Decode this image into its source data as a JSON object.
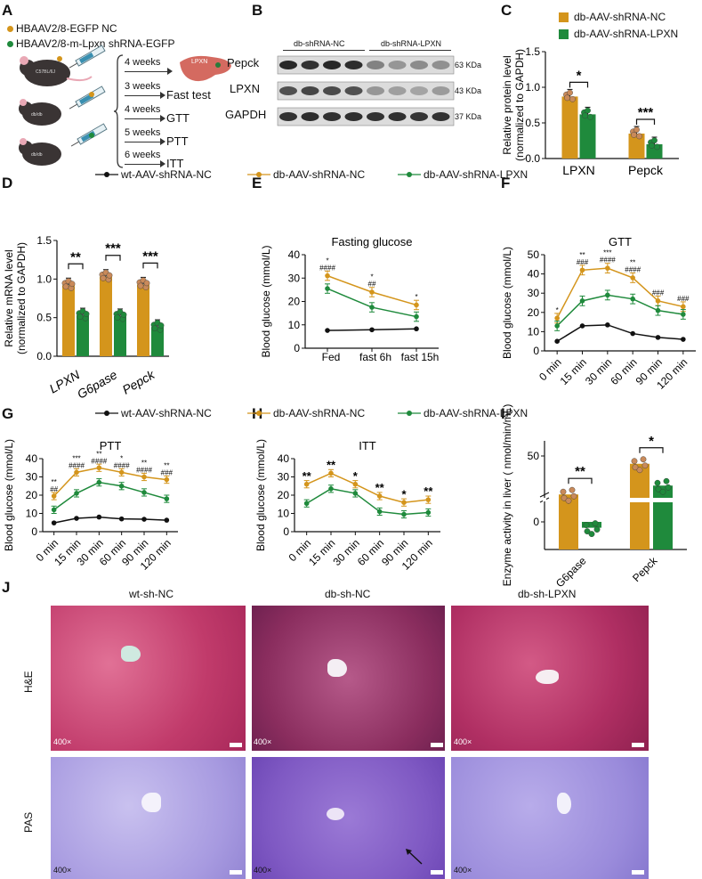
{
  "colors": {
    "nc": "#d4951c",
    "lpxn": "#1f8a3c",
    "wt": "#111111",
    "he": "#c9417d",
    "pas": "#8d7ad0"
  },
  "panel_labels": [
    "A",
    "B",
    "C",
    "D",
    "E",
    "F",
    "G",
    "H",
    "I",
    "J"
  ],
  "panelA": {
    "legend": [
      "HBAAV2/8-EGFP NC",
      "HBAAV2/8-m-Lpxn shRNA-EGFP"
    ],
    "schedule": [
      "4 weeks",
      "3 weeks",
      "4 weeks",
      "5 weeks",
      "6 weeks"
    ],
    "tests": [
      "Fast test",
      "GTT",
      "PTT",
      "ITT"
    ],
    "mouse_labels": [
      "C57BL/6J",
      "db/db",
      "db/db"
    ],
    "liver_label": "LPXN"
  },
  "panelB": {
    "groups": [
      "db-shRNA-NC",
      "db-shRNA-LPXN"
    ],
    "rows": [
      {
        "name": "Pepck",
        "kda": "63 KDa"
      },
      {
        "name": "LPXN",
        "kda": "43 KDa"
      },
      {
        "name": "GAPDH",
        "kda": "37 KDa"
      }
    ]
  },
  "legend_top": [
    "wt-AAV-shRNA-NC",
    "db-AAV-shRNA-NC",
    "db-AAV-shRNA-LPXN"
  ],
  "chart_data": [
    {
      "panel": "C",
      "type": "bar",
      "title": "",
      "ylabel": "Relative protein level (normalized to GAPDH)",
      "categories": [
        "LPXN",
        "Pepck"
      ],
      "ylim": [
        0,
        1.5
      ],
      "yticks": [
        "0.0",
        "0.5",
        "1.0",
        "1.5"
      ],
      "legend": [
        "db-AAV-shRNA-NC",
        "db-AAV-shRNA-LPXN"
      ],
      "series": [
        {
          "name": "db-AAV-shRNA-NC",
          "values": [
            0.87,
            0.35
          ]
        },
        {
          "name": "db-AAV-shRNA-LPXN",
          "values": [
            0.62,
            0.2
          ]
        }
      ],
      "significance": [
        "*",
        "***"
      ]
    },
    {
      "panel": "D",
      "type": "bar",
      "title": "",
      "ylabel": "Relative mRNA level (normalized to GAPDH)",
      "categories": [
        "LPXN",
        "G6pase",
        "Pepck"
      ],
      "ylim": [
        0,
        1.5
      ],
      "yticks": [
        "0.0",
        "0.5",
        "1.0",
        "1.5"
      ],
      "series": [
        {
          "name": "db-AAV-shRNA-NC",
          "values": [
            0.92,
            1.03,
            0.93
          ]
        },
        {
          "name": "db-AAV-shRNA-LPXN",
          "values": [
            0.53,
            0.52,
            0.38
          ]
        }
      ],
      "significance": [
        "**",
        "***",
        "***"
      ]
    },
    {
      "panel": "E",
      "type": "line",
      "title": "Fasting glucose",
      "ylabel": "Blood glucose (mmol/L)",
      "x": [
        "Fed",
        "fast 6h",
        "fast 15h"
      ],
      "ylim": [
        0,
        40
      ],
      "yticks": [
        "0",
        "10",
        "20",
        "30",
        "40"
      ],
      "series": [
        {
          "name": "wt-AAV-shRNA-NC",
          "values": [
            7.6,
            7.9,
            8.3
          ]
        },
        {
          "name": "db-AAV-shRNA-NC",
          "values": [
            31,
            24,
            18.5
          ]
        },
        {
          "name": "db-AAV-shRNA-LPXN",
          "values": [
            25.5,
            17.5,
            13.5
          ]
        }
      ],
      "annotations": [
        [
          "*",
          "####"
        ],
        [
          "*",
          "##"
        ],
        [
          "*"
        ]
      ]
    },
    {
      "panel": "F",
      "type": "line",
      "title": "GTT",
      "ylabel": "Blood glucose (mmol/L)",
      "x": [
        "0 min",
        "15 min",
        "30 min",
        "60 min",
        "90 min",
        "120 min"
      ],
      "ylim": [
        0,
        50
      ],
      "yticks": [
        "0",
        "10",
        "20",
        "30",
        "40",
        "50"
      ],
      "series": [
        {
          "name": "wt-AAV-shRNA-NC",
          "values": [
            5,
            13,
            13.5,
            9,
            7,
            6
          ]
        },
        {
          "name": "db-AAV-shRNA-NC",
          "values": [
            17,
            42,
            43,
            38,
            26,
            23
          ]
        },
        {
          "name": "db-AAV-shRNA-LPXN",
          "values": [
            13,
            26,
            29,
            27,
            21,
            19
          ]
        }
      ],
      "annotations": [
        [
          "*"
        ],
        [
          "**",
          "###"
        ],
        [
          "***",
          "####"
        ],
        [
          "**",
          "####"
        ],
        [
          "###"
        ],
        [
          "###"
        ]
      ]
    },
    {
      "panel": "G",
      "type": "line",
      "title": "PTT",
      "ylabel": "Blood glucose (mmol/L)",
      "x": [
        "0 min",
        "15 min",
        "30 min",
        "60 min",
        "90 min",
        "120 min"
      ],
      "ylim": [
        0,
        40
      ],
      "yticks": [
        "0",
        "10",
        "20",
        "30",
        "40"
      ],
      "series": [
        {
          "name": "wt-AAV-shRNA-NC",
          "values": [
            4.8,
            7.3,
            8,
            7,
            6.8,
            6.3
          ]
        },
        {
          "name": "db-AAV-shRNA-NC",
          "values": [
            19.5,
            32.5,
            35,
            32.5,
            30,
            28.5
          ]
        },
        {
          "name": "db-AAV-shRNA-LPXN",
          "values": [
            12,
            21,
            27,
            25,
            21.5,
            18
          ]
        }
      ],
      "annotations": [
        [
          "**",
          "##"
        ],
        [
          "***",
          "####"
        ],
        [
          "**",
          "####"
        ],
        [
          "*",
          "####"
        ],
        [
          "**",
          "####"
        ],
        [
          "**",
          "###"
        ]
      ]
    },
    {
      "panel": "H",
      "type": "line",
      "title": "ITT",
      "ylabel": "Blood glucose (mmol/L)",
      "x": [
        "0 min",
        "15 min",
        "30 min",
        "60 min",
        "90 min",
        "120 min"
      ],
      "ylim": [
        0,
        40
      ],
      "yticks": [
        "0",
        "10",
        "20",
        "30",
        "40"
      ],
      "series": [
        {
          "name": "db-AAV-shRNA-NC",
          "values": [
            26,
            32,
            26,
            19.5,
            16,
            17.5
          ]
        },
        {
          "name": "db-AAV-shRNA-LPXN",
          "values": [
            15.5,
            23.5,
            21,
            11,
            9.5,
            10.5
          ]
        }
      ],
      "annotations": [
        [
          "**"
        ],
        [
          "**"
        ],
        [
          "*"
        ],
        [
          "**"
        ],
        [
          "*"
        ],
        [
          "**"
        ]
      ]
    },
    {
      "panel": "I",
      "type": "bar",
      "title": "",
      "ylabel": "Enzyme activity in liver ( nmol/min/mL)",
      "categories": [
        "G6pase",
        "Pepck"
      ],
      "yticks": [
        "0",
        "50"
      ],
      "series": [
        {
          "name": "db-AAV-shRNA-NC",
          "values": [
            14,
            44
          ]
        },
        {
          "name": "db-AAV-shRNA-LPXN",
          "values": [
            -3,
            30
          ]
        }
      ],
      "significance": [
        "**",
        "*"
      ]
    }
  ],
  "panelJ": {
    "columns": [
      "wt-sh-NC",
      "db-sh-NC",
      "db-sh-LPXN"
    ],
    "rows": [
      "H&E",
      "PAS"
    ],
    "magnification": "400×"
  }
}
